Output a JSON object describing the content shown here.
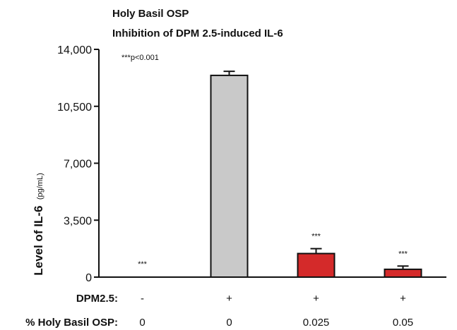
{
  "chart_data": {
    "type": "bar",
    "title": "Holy Basil OSP",
    "subtitle": "Inhibition of DPM 2.5-induced IL-6",
    "ylabel": "Level of IL-6",
    "ylabel_unit": "(pg/mL)",
    "ylim": [
      0,
      14000
    ],
    "yticks": [
      0,
      3500,
      7000,
      10500,
      14000
    ],
    "ytick_labels": [
      "0",
      "3,500",
      "7,000",
      "10,500",
      "14,000"
    ],
    "note": "***p<0.001",
    "row_labels": [
      "DPM2.5:",
      "% Holy Basil OSP:"
    ],
    "bars": [
      {
        "dpm": "-",
        "osp": "0",
        "value": 0,
        "error": 0,
        "sig": "***",
        "color": "#c9c9c9"
      },
      {
        "dpm": "+",
        "osp": "0",
        "value": 12400,
        "error": 250,
        "sig": "",
        "color": "#c9c9c9"
      },
      {
        "dpm": "+",
        "osp": "0.025",
        "value": 1450,
        "error": 300,
        "sig": "***",
        "color": "#d42a2a"
      },
      {
        "dpm": "+",
        "osp": "0.05",
        "value": 480,
        "error": 200,
        "sig": "***",
        "color": "#d42a2a"
      }
    ],
    "grid": false
  }
}
